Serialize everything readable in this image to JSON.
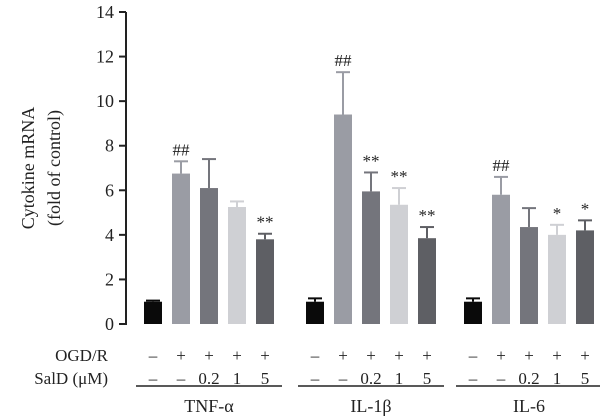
{
  "chart_data": {
    "type": "bar",
    "ylabel_lines": [
      "Cytokine mRNA",
      "(fold of control)"
    ],
    "ylim": [
      0,
      14
    ],
    "yticks": [
      "0",
      "2",
      "4",
      "6",
      "8",
      "10",
      "12",
      "14"
    ],
    "row_labels": [
      "OGD/R",
      "SalD (μM)"
    ],
    "groups": [
      {
        "label": "TNF-α",
        "bars": [
          {
            "value": 1.0,
            "error": 0.05,
            "sig": "",
            "ogdr": "–",
            "sald": "–",
            "color": "#0a0a0a"
          },
          {
            "value": 6.75,
            "error": 0.55,
            "sig": "##",
            "ogdr": "+",
            "sald": "–",
            "color": "#9a9ca4"
          },
          {
            "value": 6.1,
            "error": 1.3,
            "sig": "",
            "ogdr": "+",
            "sald": "0.2",
            "color": "#74757c"
          },
          {
            "value": 5.25,
            "error": 0.25,
            "sig": "",
            "ogdr": "+",
            "sald": "1",
            "color": "#cfd0d4"
          },
          {
            "value": 3.8,
            "error": 0.25,
            "sig": "**",
            "ogdr": "+",
            "sald": "5",
            "color": "#5e5f64"
          }
        ]
      },
      {
        "label": "IL-1β",
        "bars": [
          {
            "value": 1.0,
            "error": 0.15,
            "sig": "",
            "ogdr": "–",
            "sald": "–",
            "color": "#0a0a0a"
          },
          {
            "value": 9.4,
            "error": 1.9,
            "sig": "##",
            "ogdr": "+",
            "sald": "–",
            "color": "#9a9ca4"
          },
          {
            "value": 5.95,
            "error": 0.85,
            "sig": "**",
            "ogdr": "+",
            "sald": "0.2",
            "color": "#74757c"
          },
          {
            "value": 5.35,
            "error": 0.75,
            "sig": "**",
            "ogdr": "+",
            "sald": "1",
            "color": "#cfd0d4"
          },
          {
            "value": 3.85,
            "error": 0.5,
            "sig": "**",
            "ogdr": "+",
            "sald": "5",
            "color": "#5e5f64"
          }
        ]
      },
      {
        "label": "IL-6",
        "bars": [
          {
            "value": 1.0,
            "error": 0.15,
            "sig": "",
            "ogdr": "–",
            "sald": "–",
            "color": "#0a0a0a"
          },
          {
            "value": 5.8,
            "error": 0.8,
            "sig": "##",
            "ogdr": "+",
            "sald": "–",
            "color": "#9a9ca4"
          },
          {
            "value": 4.35,
            "error": 0.85,
            "sig": "",
            "ogdr": "+",
            "sald": "0.2",
            "color": "#74757c"
          },
          {
            "value": 4.0,
            "error": 0.45,
            "sig": "*",
            "ogdr": "+",
            "sald": "1",
            "color": "#cfd0d4"
          },
          {
            "value": 4.2,
            "error": 0.45,
            "sig": "*",
            "ogdr": "+",
            "sald": "5",
            "color": "#5e5f64"
          }
        ]
      }
    ]
  }
}
